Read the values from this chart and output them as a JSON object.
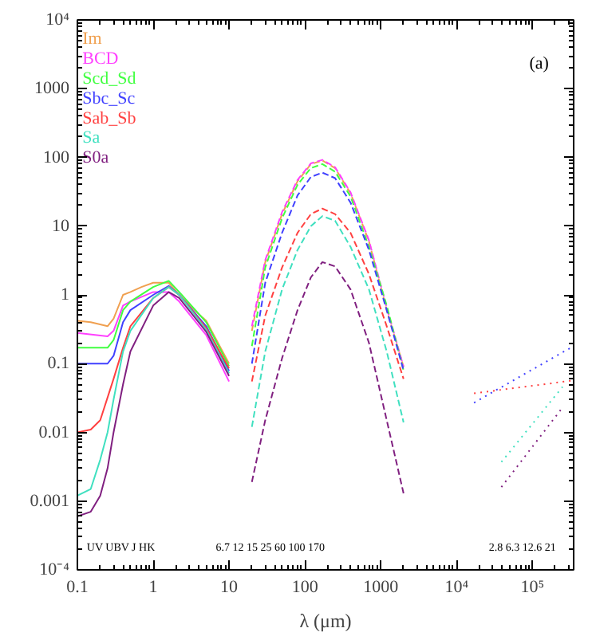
{
  "chart_data": {
    "type": "line",
    "xlabel": "λ (μm)",
    "log": "xy",
    "legend": "top left",
    "grid": false,
    "xlim": [
      0.1,
      350000
    ],
    "ylim": [
      0.0001,
      10000
    ],
    "xticks": [
      0.1,
      1,
      10,
      100,
      1000,
      {
        "value": 10000,
        "label": "10⁴"
      },
      {
        "value": 100000,
        "label": "10⁵"
      }
    ],
    "yticks": [
      {
        "value": 0.0001,
        "label": "10⁻⁴"
      },
      0.001,
      0.01,
      0.1,
      1,
      10,
      100,
      1000,
      {
        "value": 10000,
        "label": "10⁴"
      }
    ],
    "series": [
      {
        "name": "Im",
        "color": "#f0a050",
        "line_style": "solid",
        "x": [
          0.1,
          0.15,
          0.25,
          0.3,
          0.4,
          0.5,
          0.7,
          1,
          1.6,
          2.2,
          3.5,
          5,
          10
        ],
        "values": [
          0.42,
          0.4,
          0.35,
          0.45,
          1.0,
          1.1,
          1.3,
          1.5,
          1.5,
          1.0,
          0.6,
          0.42,
          0.1
        ]
      },
      {
        "name": "BCD",
        "color": "#ff40ff",
        "line_style": "solid",
        "x": [
          0.1,
          0.25,
          0.3,
          0.4,
          0.5,
          1,
          1.6,
          2.2,
          5,
          10
        ],
        "values": [
          0.28,
          0.25,
          0.3,
          0.7,
          0.8,
          1.1,
          1.1,
          0.8,
          0.26,
          0.055
        ]
      },
      {
        "name": "Scd_Sd",
        "color": "#40ff40",
        "line_style": "solid",
        "x": [
          0.1,
          0.25,
          0.3,
          0.4,
          0.5,
          1,
          1.6,
          2.2,
          5,
          10
        ],
        "values": [
          0.17,
          0.17,
          0.22,
          0.6,
          0.8,
          1.3,
          1.6,
          1.1,
          0.4,
          0.092
        ]
      },
      {
        "name": "Sbc_Sc",
        "color": "#4040ff",
        "line_style": "solid",
        "x": [
          0.1,
          0.25,
          0.3,
          0.4,
          0.5,
          1,
          1.6,
          2.2,
          5,
          10
        ],
        "values": [
          0.1,
          0.1,
          0.13,
          0.4,
          0.6,
          1.0,
          1.35,
          1.0,
          0.35,
          0.078
        ]
      },
      {
        "name": "Sab_Sb",
        "color": "#ff4040",
        "line_style": "solid",
        "x": [
          0.1,
          0.15,
          0.2,
          0.3,
          0.4,
          0.5,
          1,
          1.6,
          2.2,
          5,
          10
        ],
        "values": [
          0.01,
          0.011,
          0.015,
          0.06,
          0.17,
          0.35,
          0.9,
          1.3,
          1.0,
          0.33,
          0.085
        ]
      },
      {
        "name": "Sa",
        "color": "#40e0c0",
        "line_style": "solid",
        "x": [
          0.1,
          0.15,
          0.2,
          0.25,
          0.3,
          0.4,
          0.5,
          1,
          1.6,
          2.2,
          5,
          10
        ],
        "values": [
          0.0012,
          0.0015,
          0.004,
          0.01,
          0.03,
          0.15,
          0.3,
          0.9,
          1.3,
          1.0,
          0.31,
          0.072
        ]
      },
      {
        "name": "S0a",
        "color": "#802080",
        "line_style": "solid",
        "x": [
          0.1,
          0.15,
          0.2,
          0.25,
          0.3,
          0.4,
          0.5,
          1,
          1.6,
          2.2,
          5,
          10
        ],
        "values": [
          0.0006,
          0.0007,
          0.0012,
          0.003,
          0.01,
          0.05,
          0.15,
          0.7,
          1.1,
          0.9,
          0.29,
          0.066
        ]
      },
      {
        "color": "#f0a050",
        "line_style": "dashed",
        "x": [
          20,
          30,
          50,
          80,
          120,
          170,
          250,
          400,
          700,
          1200,
          2000
        ],
        "values": [
          0.3,
          3,
          15,
          45,
          80,
          90,
          70,
          30,
          6,
          0.6,
          0.09
        ]
      },
      {
        "color": "#ff40ff",
        "line_style": "dashed",
        "x": [
          20,
          30,
          50,
          80,
          120,
          170,
          250,
          400,
          700,
          1200,
          2000
        ],
        "values": [
          0.35,
          3.2,
          16,
          47,
          82,
          92,
          72,
          31,
          6.2,
          0.65,
          0.09
        ]
      },
      {
        "color": "#40ff40",
        "line_style": "dashed",
        "x": [
          20,
          30,
          50,
          80,
          120,
          170,
          250,
          400,
          700,
          1200,
          2000
        ],
        "values": [
          0.18,
          2.5,
          13,
          40,
          70,
          80,
          62,
          27,
          5,
          0.7,
          0.08
        ]
      },
      {
        "color": "#4040ff",
        "line_style": "dashed",
        "x": [
          20,
          30,
          50,
          80,
          120,
          170,
          250,
          400,
          700,
          1200,
          2000
        ],
        "values": [
          0.1,
          1.5,
          8,
          28,
          52,
          60,
          50,
          22,
          4.5,
          0.6,
          0.08
        ]
      },
      {
        "color": "#ff4040",
        "line_style": "dashed",
        "x": [
          20,
          30,
          50,
          80,
          120,
          170,
          250,
          400,
          700,
          1200,
          2000
        ],
        "values": [
          0.055,
          0.5,
          2.5,
          8,
          15,
          18,
          15,
          8,
          2,
          0.35,
          0.06
        ]
      },
      {
        "color": "#40e0c0",
        "line_style": "dashed",
        "x": [
          20,
          30,
          50,
          80,
          120,
          170,
          250,
          400,
          700,
          1200,
          2000
        ],
        "values": [
          0.012,
          0.15,
          1.2,
          4.5,
          10,
          14,
          12,
          5,
          1.2,
          0.15,
          0.014
        ]
      },
      {
        "color": "#802080",
        "line_style": "dashed",
        "x": [
          20,
          30,
          50,
          80,
          120,
          170,
          250,
          400,
          700,
          1200,
          2000
        ],
        "values": [
          0.0019,
          0.015,
          0.12,
          0.6,
          1.8,
          3,
          2.6,
          1.2,
          0.2,
          0.015,
          0.0013
        ]
      },
      {
        "color": "#4040ff",
        "line_style": "dotted",
        "x": [
          17000,
          350000
        ],
        "values": [
          0.027,
          0.18
        ]
      },
      {
        "color": "#ff4040",
        "line_style": "dotted",
        "x": [
          17000,
          350000
        ],
        "values": [
          0.037,
          0.057
        ]
      },
      {
        "color": "#40e0c0",
        "line_style": "dotted",
        "x": [
          39000,
          250000
        ],
        "values": [
          0.0037,
          0.046
        ]
      },
      {
        "color": "#802080",
        "line_style": "dotted",
        "x": [
          39000,
          250000
        ],
        "values": [
          0.0016,
          0.023
        ]
      }
    ],
    "annotations": [
      "(a)",
      "UV   UBV     J HK",
      "6.7 12 15 25     60 100 170",
      "2.8   6.3  12.6 21"
    ]
  }
}
